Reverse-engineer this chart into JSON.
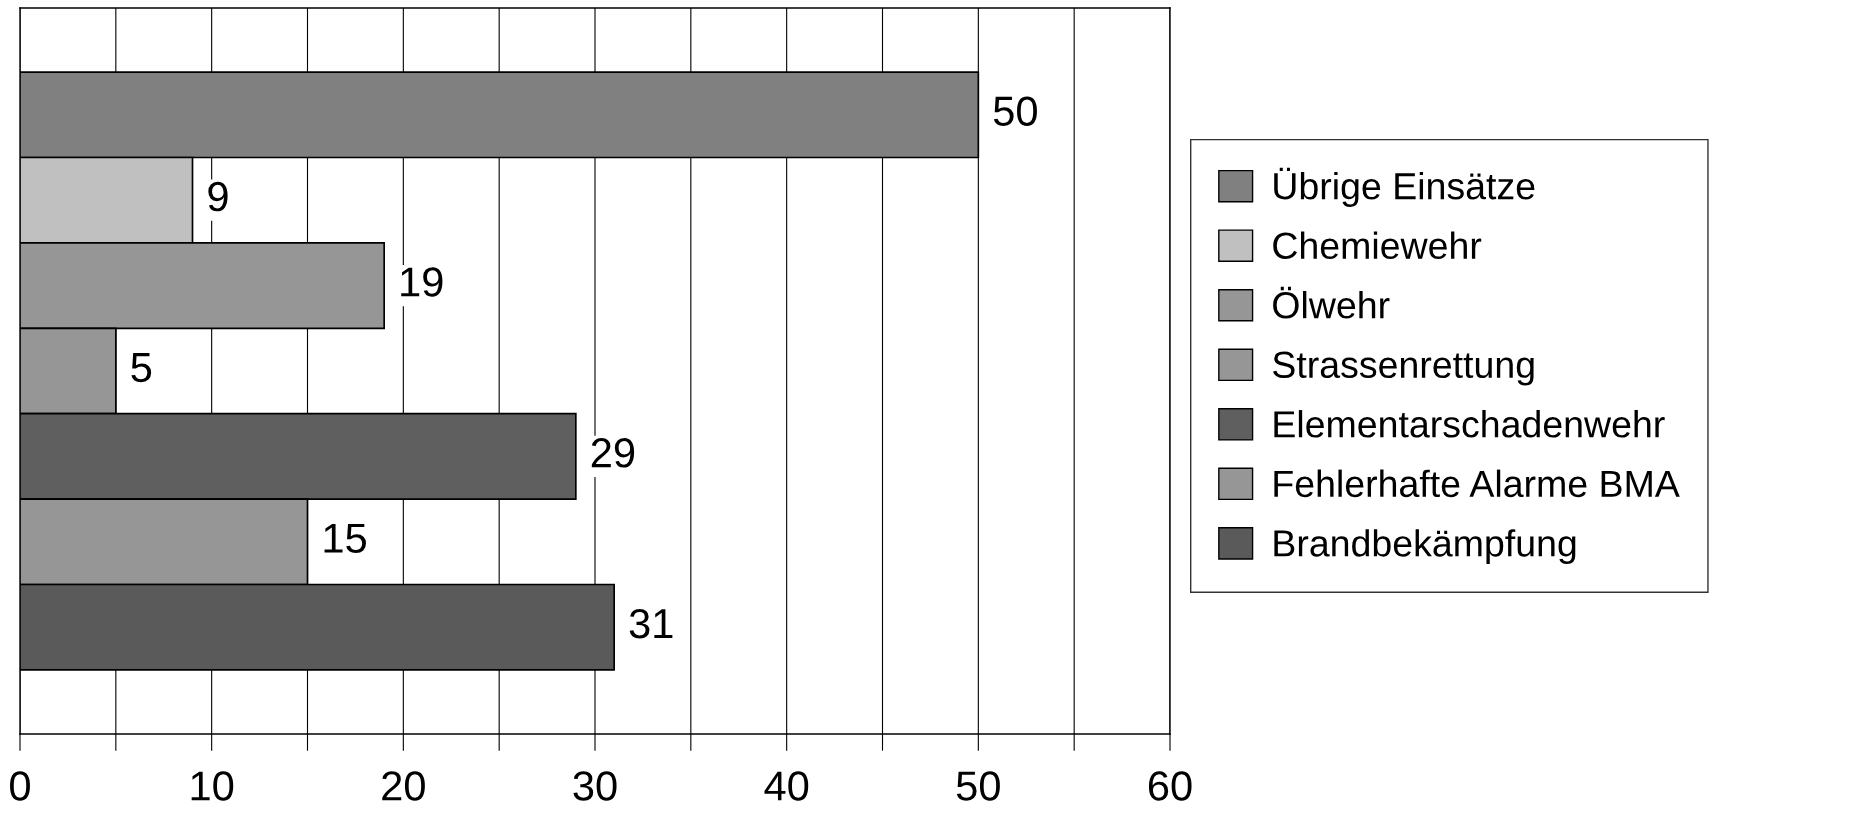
{
  "chart_data": {
    "type": "bar",
    "orientation": "horizontal",
    "categories": [
      null
    ],
    "series": [
      {
        "name": "Übrige Einsätze",
        "color": "#808080",
        "values": [
          50
        ]
      },
      {
        "name": "Chemiewehr",
        "color": "#c0c0c0",
        "values": [
          9
        ]
      },
      {
        "name": "Ölwehr",
        "color": "#969696",
        "values": [
          19
        ]
      },
      {
        "name": "Strassenrettung",
        "color": "#969696",
        "values": [
          5
        ]
      },
      {
        "name": "Elementarschadenwehr",
        "color": "#5f5f5f",
        "values": [
          29
        ]
      },
      {
        "name": "Fehlerhafte Alarme BMA",
        "color": "#969696",
        "values": [
          15
        ]
      },
      {
        "name": "Brandbekämpfung",
        "color": "#5a5a5a",
        "values": [
          31
        ]
      }
    ],
    "xlim": [
      0,
      60
    ],
    "xticks": [
      0,
      {
        "value": 5,
        "label": null
      },
      10,
      {
        "value": 15,
        "label": null
      },
      20,
      {
        "value": 25,
        "label": null
      },
      30,
      {
        "value": 35,
        "label": null
      },
      40,
      {
        "value": 45,
        "label": null
      },
      50,
      {
        "value": 55,
        "label": null
      },
      60
    ],
    "grid": "x",
    "legend": "right",
    "data_labels": true,
    "tick_labels": "x"
  }
}
